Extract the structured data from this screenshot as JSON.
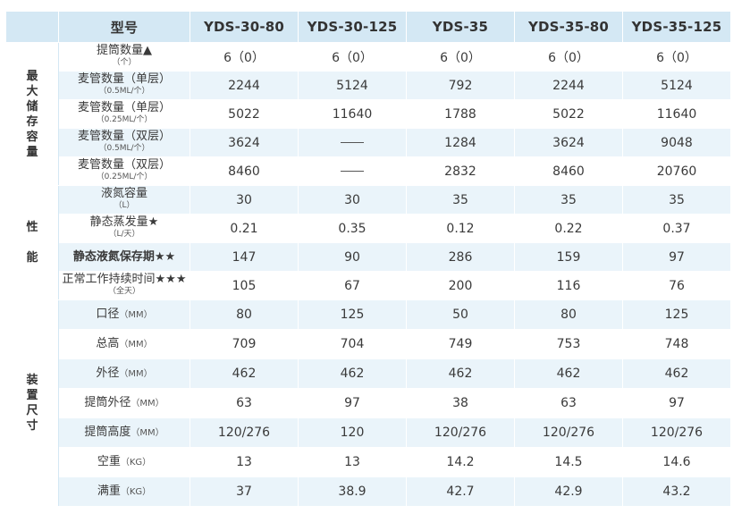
{
  "header": {
    "model_label": "型号",
    "models": [
      "YDS-30-80",
      "YDS-30-125",
      "YDS-35",
      "YDS-35-80",
      "YDS-35-125"
    ]
  },
  "groups": [
    {
      "name": "最大储存容量",
      "rows": [
        {
          "label": "提筒数量▲",
          "sub": "（个）",
          "values": [
            "6（0）",
            "6（0）",
            "6（0）",
            "6（0）",
            "6（0）"
          ]
        },
        {
          "label": "麦管数量（单层）",
          "sub": "（0.5ML/个）",
          "values": [
            "2244",
            "5124",
            "792",
            "2244",
            "5124"
          ]
        },
        {
          "label": "麦管数量（单层）",
          "sub": "（0.25ML/个）",
          "values": [
            "5022",
            "11640",
            "1788",
            "5022",
            "11640"
          ]
        },
        {
          "label": "麦管数量（双层）",
          "sub": "（0.5ML/个）",
          "values": [
            "3624",
            "",
            "1284",
            "3624",
            "9048"
          ]
        },
        {
          "label": "麦管数量（双层）",
          "sub": "（0.25ML/个）",
          "values": [
            "8460",
            "",
            "2832",
            "8460",
            "20760"
          ]
        }
      ]
    },
    {
      "name": "性能",
      "rows": [
        {
          "label": "液氮容量",
          "sub": "（L）",
          "values": [
            "30",
            "30",
            "35",
            "35",
            "35"
          ]
        },
        {
          "label": "静态蒸发量★",
          "sub": "（L/天）",
          "values": [
            "0.21",
            "0.35",
            "0.12",
            "0.22",
            "0.37"
          ]
        },
        {
          "label": "静态液氮保存期★★",
          "sub": "",
          "values": [
            "147",
            "90",
            "286",
            "159",
            "97"
          ]
        },
        {
          "label": "正常工作持续时间★★★",
          "sub": "（全天）",
          "values": [
            "105",
            "67",
            "200",
            "116",
            "76"
          ]
        }
      ]
    },
    {
      "name": "装置尺寸",
      "rows": [
        {
          "label": "口径",
          "unit": "（MM）",
          "values": [
            "80",
            "125",
            "50",
            "80",
            "125"
          ]
        },
        {
          "label": "总高",
          "unit": "（MM）",
          "values": [
            "709",
            "704",
            "749",
            "753",
            "748"
          ]
        },
        {
          "label": "外径",
          "unit": "（MM）",
          "values": [
            "462",
            "462",
            "462",
            "462",
            "462"
          ]
        },
        {
          "label": "提筒外径",
          "unit": "（MM）",
          "values": [
            "63",
            "97",
            "38",
            "63",
            "97"
          ]
        },
        {
          "label": "提筒高度",
          "unit": "（MM）",
          "values": [
            "120/276",
            "120",
            "120/276",
            "120/276",
            "120/276"
          ]
        },
        {
          "label": "空重",
          "unit": "（KG）",
          "values": [
            "13",
            "13",
            "14.2",
            "14.5",
            "14.6"
          ]
        },
        {
          "label": "满重",
          "unit": "（KG）",
          "values": [
            "37",
            "38.9",
            "42.7",
            "42.9",
            "43.2"
          ]
        }
      ]
    }
  ],
  "colors": {
    "header_bg": "#d4e8f4",
    "row_alt_bg": "#eaf4fa",
    "text": "#3a3a3a"
  }
}
